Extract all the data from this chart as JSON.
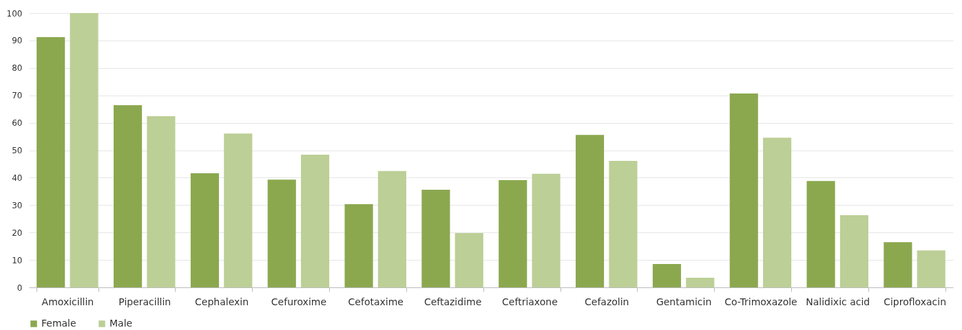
{
  "chart_data": {
    "type": "bar",
    "categories": [
      "Amoxicillin",
      "Piperacillin",
      "Cephalexin",
      "Cefuroxime",
      "Cefotaxime",
      "Ceftazidime",
      "Ceftriaxone",
      "Cefazolin",
      "Gentamicin",
      "Co-Trimoxazole",
      "Nalidixic acid",
      "Ciprofloxacin"
    ],
    "series": [
      {
        "name": "Female",
        "color": "#8ba84f",
        "values": [
          91.2,
          66.4,
          41.6,
          39.3,
          30.3,
          35.6,
          39.1,
          55.6,
          8.5,
          70.7,
          38.8,
          16.5
        ]
      },
      {
        "name": "Male",
        "color": "#bccf96",
        "values": [
          100,
          62.4,
          56.1,
          48.4,
          42.4,
          19.8,
          41.4,
          46.1,
          3.5,
          54.6,
          26.3,
          13.5
        ]
      }
    ],
    "ylim": [
      0,
      100
    ],
    "yticks": [
      0,
      10,
      20,
      30,
      40,
      50,
      60,
      70,
      80,
      90,
      100
    ],
    "grid": "y",
    "legend": "bottom"
  }
}
